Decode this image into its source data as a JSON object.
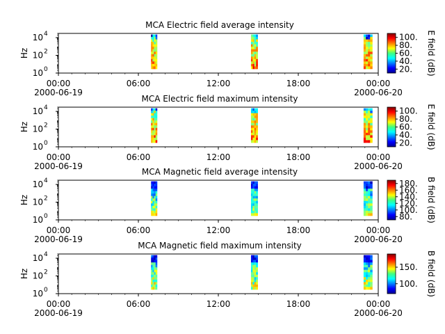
{
  "chart_data": [
    {
      "type": "heatmap",
      "title": "MCA  Electric field average intensity",
      "ylabel": "Hz",
      "y_scale": "log",
      "ylim": [
        1,
        30000
      ],
      "y_ticks": [
        {
          "value": 1,
          "label": "10",
          "exp": "0"
        },
        {
          "value": 100,
          "label": "10",
          "exp": "2"
        },
        {
          "value": 10000,
          "label": "10",
          "exp": "4"
        }
      ],
      "x_ticks": [
        {
          "value": "00:00",
          "label": "00:00",
          "date": "2000-06-19"
        },
        {
          "value": "06:00",
          "label": "06:00"
        },
        {
          "value": "12:00",
          "label": "12:00"
        },
        {
          "value": "18:00",
          "label": "18:00"
        },
        {
          "value": "24:00",
          "label": "00:00",
          "date": "2000-06-20"
        }
      ],
      "bursts_hours": [
        [
          6.95,
          7.4
        ],
        [
          14.45,
          14.95
        ],
        [
          22.9,
          23.55
        ]
      ],
      "colorbar": {
        "label": "E field (dB)",
        "range": [
          10,
          110
        ],
        "ticks": [
          "20.",
          "40.",
          "60.",
          "80.",
          "100."
        ]
      }
    },
    {
      "type": "heatmap",
      "title": "MCA  Electric field maximum intensity",
      "ylabel": "Hz",
      "y_scale": "log",
      "ylim": [
        1,
        30000
      ],
      "y_ticks": [
        {
          "value": 1,
          "label": "10",
          "exp": "0"
        },
        {
          "value": 100,
          "label": "10",
          "exp": "2"
        },
        {
          "value": 10000,
          "label": "10",
          "exp": "4"
        }
      ],
      "x_ticks": [
        {
          "value": "00:00",
          "label": "00:00",
          "date": "2000-06-19"
        },
        {
          "value": "06:00",
          "label": "06:00"
        },
        {
          "value": "12:00",
          "label": "12:00"
        },
        {
          "value": "18:00",
          "label": "18:00"
        },
        {
          "value": "24:00",
          "label": "00:00",
          "date": "2000-06-20"
        }
      ],
      "bursts_hours": [
        [
          6.95,
          7.4
        ],
        [
          14.45,
          14.95
        ],
        [
          22.9,
          23.55
        ]
      ],
      "colorbar": {
        "label": "E field (dB)",
        "range": [
          10,
          110
        ],
        "ticks": [
          "20.",
          "40.",
          "60.",
          "80.",
          "100."
        ]
      }
    },
    {
      "type": "heatmap",
      "title": "MCA  Magnetic field average intensity",
      "ylabel": "Hz",
      "y_scale": "log",
      "ylim": [
        1,
        30000
      ],
      "y_ticks": [
        {
          "value": 1,
          "label": "10",
          "exp": "0"
        },
        {
          "value": 100,
          "label": "10",
          "exp": "2"
        },
        {
          "value": 10000,
          "label": "10",
          "exp": "4"
        }
      ],
      "x_ticks": [
        {
          "value": "00:00",
          "label": "00:00",
          "date": "2000-06-19"
        },
        {
          "value": "06:00",
          "label": "06:00"
        },
        {
          "value": "12:00",
          "label": "12:00"
        },
        {
          "value": "18:00",
          "label": "18:00"
        },
        {
          "value": "24:00",
          "label": "00:00",
          "date": "2000-06-20"
        }
      ],
      "bursts_hours": [
        [
          6.95,
          7.4
        ],
        [
          14.45,
          14.95
        ],
        [
          22.9,
          23.55
        ]
      ],
      "colorbar": {
        "label": "B field (dB)",
        "range": [
          70,
          190
        ],
        "ticks": [
          "80.",
          "100.",
          "120.",
          "140.",
          "160.",
          "180."
        ]
      }
    },
    {
      "type": "heatmap",
      "title": "MCA  Magnetic field maximum intensity",
      "ylabel": "Hz",
      "y_scale": "log",
      "ylim": [
        1,
        30000
      ],
      "y_ticks": [
        {
          "value": 1,
          "label": "10",
          "exp": "0"
        },
        {
          "value": 100,
          "label": "10",
          "exp": "2"
        },
        {
          "value": 10000,
          "label": "10",
          "exp": "4"
        }
      ],
      "x_ticks": [
        {
          "value": "00:00",
          "label": "00:00",
          "date": "2000-06-19"
        },
        {
          "value": "06:00",
          "label": "06:00"
        },
        {
          "value": "12:00",
          "label": "12:00"
        },
        {
          "value": "18:00",
          "label": "18:00"
        },
        {
          "value": "24:00",
          "label": "00:00",
          "date": "2000-06-20"
        }
      ],
      "bursts_hours": [
        [
          6.95,
          7.4
        ],
        [
          14.45,
          14.95
        ],
        [
          22.9,
          23.55
        ]
      ],
      "colorbar": {
        "label": "B field (dB)",
        "range": [
          70,
          190
        ],
        "ticks": [
          "100.",
          "150."
        ]
      }
    }
  ]
}
